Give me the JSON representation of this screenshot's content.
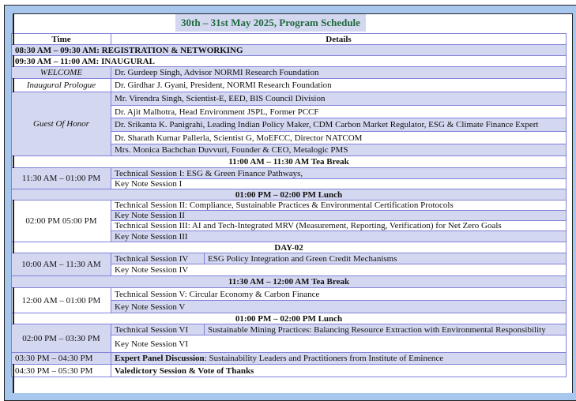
{
  "title": "30th – 31st May 2025, Program Schedule",
  "header": {
    "time": "Time",
    "details": "Details"
  },
  "colors": {
    "row_shade": "#d4d7f0",
    "border": "#8080d8",
    "title_text": "#1e6b3c",
    "frame": "#a8c7ee"
  },
  "day1": {
    "registration": "08:30 AM – 09:30 AM: REGISTRATION & NETWORKING",
    "inaugural": "09:30 AM – 11:00 AM: INAUGURAL",
    "welcome": {
      "role": "WELCOME",
      "name": "Dr. Gurdeep Singh, Advisor NORMI Research Foundation"
    },
    "prologue": {
      "role": "Inaugural Prologue",
      "name": "Dr. Girdhar J. Gyani, President, NORMI Research Foundation"
    },
    "guests": {
      "role": "Guest Of Honor",
      "names": [
        "Mr. Virendra Singh, Scientist-E, EED, BIS Council Division",
        "Dr. Ajit Malhotra, Head Environment JSPL, Former PCCF",
        "Dr. Srikanta K. Panigrahi, Leading Indian Policy Maker, CDM Carbon Market Regulator, ESG & Climate Finance Expert",
        "Dr. Sharath Kumar Pallerla, Scientist G, MoEFCC, Director NATCOM",
        "Mrs. Monica Bachchan Duvvuri, Founder & CEO, Metalogic PMS"
      ]
    },
    "tea_break": "11:00 AM – 11:30 AM Tea Break",
    "slot1": {
      "time": "11:30 AM – 01:00 PM",
      "items": [
        "Technical Session I: ESG & Green Finance Pathways,",
        "Key Note Session I"
      ]
    },
    "lunch": "01:00 PM – 02:00 PM Lunch",
    "slot2": {
      "time": "02:00 PM 05:00 PM",
      "items": [
        "Technical Session II:  Compliance, Sustainable Practices & Environmental Certification Protocols",
        "Key Note Session II",
        "Technical Session III: AI and Tech-Integrated MRV (Measurement, Reporting, Verification) for Net Zero Goals",
        "Key Note Session III"
      ]
    }
  },
  "day2": {
    "label": "DAY-02",
    "slot1": {
      "time": "10:00 AM – 11:30 AM",
      "session": "Technical Session IV",
      "topic": "ESG Policy Integration and Green Credit Mechanisms",
      "keynote": "Key Note Session IV"
    },
    "tea_break": "11:30 AM – 12:00 AM Tea Break",
    "slot2": {
      "time": "12:00 AM – 01:00 PM",
      "session": "Technical Session V:  Circular Economy & Carbon Finance",
      "keynote": "Key Note Session V"
    },
    "lunch": "01:00 PM – 02:00 PM Lunch",
    "slot3": {
      "time": "02:00 PM – 03:30 PM",
      "session": "Technical Session VI",
      "topic": "Sustainable Mining Practices: Balancing Resource Extraction with Environmental Responsibility",
      "keynote": "Key Note Session VI"
    },
    "panel": {
      "time": "03:30 PM – 04:30 PM",
      "label": "Expert Panel Discussion",
      "text": ":  Sustainability Leaders and Practitioners from Institute of Eminence"
    },
    "valedictory": {
      "time": "04:30 PM – 05:30 PM",
      "text": "Valedictory Session & Vote of Thanks"
    }
  }
}
